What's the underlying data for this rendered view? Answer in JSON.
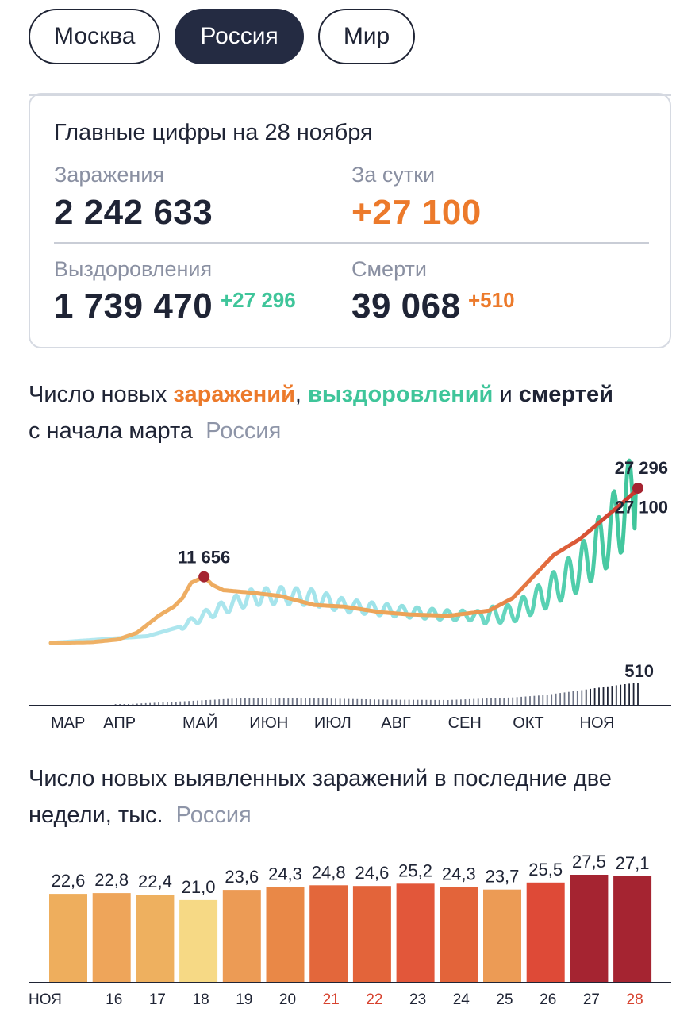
{
  "tabs": [
    {
      "label": "Москва",
      "active": false
    },
    {
      "label": "Россия",
      "active": true
    },
    {
      "label": "Мир",
      "active": false
    }
  ],
  "summary": {
    "title": "Главные цифры на 28 ноября",
    "infections_label": "Заражения",
    "infections_value": "2 242 633",
    "daily_label": "За сутки",
    "daily_value": "+27 100",
    "recoveries_label": "Выздоровления",
    "recoveries_value": "1 739 470",
    "recoveries_delta": "+27 296",
    "deaths_label": "Смерти",
    "deaths_value": "39 068",
    "deaths_delta": "+510"
  },
  "colors": {
    "infections": "#ec7a2b",
    "recoveries": "#3fc59a",
    "deaths": "#1f2435",
    "tab_active": "#242b42"
  },
  "line_chart_heading": {
    "part1": "Число новых ",
    "infections_word": "заражений",
    "comma": ", ",
    "recoveries_word": "выздоровлений",
    "and": " и ",
    "deaths_word": "смертей",
    "line2": "с начала марта",
    "region": "Россия"
  },
  "bar_chart_heading": {
    "line1": "Число новых выявленных заражений в последние две",
    "line2": "недели, тыс.",
    "region": "Россия"
  },
  "chart_data": [
    {
      "type": "line",
      "months": [
        "МАР",
        "АПР",
        "МАЙ",
        "ИЮН",
        "ИЮЛ",
        "АВГ",
        "СЕН",
        "ОКТ",
        "НОЯ"
      ],
      "annotations": {
        "infections_peak_may": "11 656",
        "recoveries_last": "27 296",
        "infections_last": "27 100",
        "deaths_last": "510"
      },
      "series": [
        {
          "name": "заражений",
          "unit": "cases per day",
          "x": [
            "03-01",
            "03-20",
            "04-01",
            "04-10",
            "04-20",
            "04-27",
            "05-01",
            "05-05",
            "05-11",
            "05-15",
            "05-20",
            "06-01",
            "06-15",
            "07-01",
            "07-15",
            "08-01",
            "08-15",
            "09-01",
            "09-10",
            "09-20",
            "10-01",
            "10-10",
            "10-20",
            "11-01",
            "11-10",
            "11-20",
            "11-28"
          ],
          "values": [
            0,
            150,
            600,
            1800,
            4800,
            6400,
            7900,
            10600,
            11656,
            10200,
            9300,
            8900,
            8300,
            6700,
            6400,
            5400,
            5000,
            4800,
            5200,
            5700,
            7900,
            11500,
            15500,
            18300,
            21200,
            24400,
            27100
          ]
        },
        {
          "name": "выздоровлений",
          "unit": "recoveries per day",
          "x": [
            "03-01",
            "04-15",
            "05-01",
            "05-15",
            "06-01",
            "06-15",
            "07-01",
            "07-15",
            "08-01",
            "08-15",
            "09-01",
            "09-15",
            "10-01",
            "10-15",
            "11-01",
            "11-15",
            "11-28"
          ],
          "values": [
            0,
            1200,
            3000,
            5500,
            8000,
            8400,
            8000,
            6600,
            5900,
            5400,
            4900,
            4800,
            5200,
            8300,
            13000,
            19500,
            27296
          ]
        },
        {
          "name": "смертей",
          "unit": "deaths per day",
          "x": [
            "03-01",
            "04-01",
            "05-01",
            "06-01",
            "07-01",
            "08-01",
            "09-01",
            "10-01",
            "10-15",
            "11-01",
            "11-15",
            "11-28"
          ],
          "values": [
            0,
            5,
            80,
            160,
            150,
            120,
            110,
            170,
            220,
            330,
            430,
            510
          ]
        }
      ]
    },
    {
      "type": "bar",
      "title": "Число новых выявленных заражений в последние две недели, тыс.",
      "categories": [
        "НОЯ",
        "16",
        "17",
        "18",
        "19",
        "20",
        "21",
        "22",
        "23",
        "24",
        "25",
        "26",
        "27",
        "28"
      ],
      "weekend_categories": [
        "21",
        "22",
        "28"
      ],
      "values": [
        22.6,
        22.8,
        22.4,
        21.0,
        23.6,
        24.3,
        24.8,
        24.6,
        25.2,
        24.3,
        23.7,
        25.5,
        27.5,
        27.1
      ],
      "value_labels": [
        "22,6",
        "22,8",
        "22,4",
        "21,0",
        "23,6",
        "24,3",
        "24,8",
        "24,6",
        "25,2",
        "24,3",
        "23,7",
        "25,5",
        "27,5",
        "27,1"
      ],
      "colors": [
        "#eeae5d",
        "#eea55a",
        "#eeb05f",
        "#f6d985",
        "#ec9b55",
        "#e98847",
        "#e3673b",
        "#e3643a",
        "#e2573a",
        "#e3643a",
        "#ec9b55",
        "#de4a37",
        "#a52431",
        "#a52431"
      ],
      "weekend_label_color": "#d7422e"
    }
  ]
}
